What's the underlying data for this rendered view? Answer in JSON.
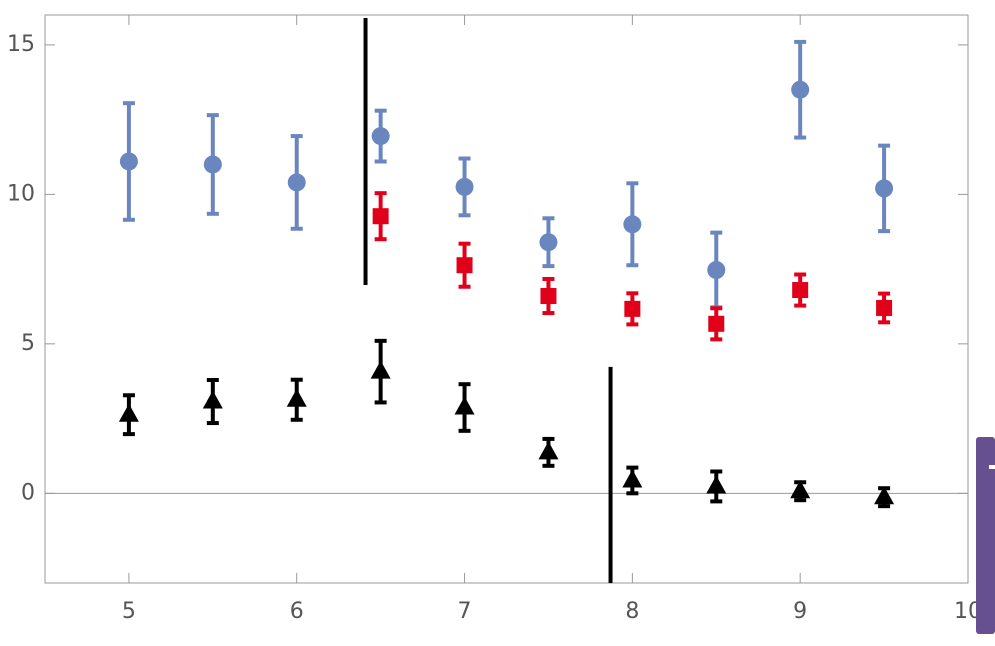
{
  "chart_data": {
    "type": "errorbar",
    "xlim": [
      4.5,
      10
    ],
    "ylim": [
      -3,
      16
    ],
    "xticks": [
      5,
      6,
      7,
      8,
      9,
      10
    ],
    "yticks": [
      0,
      5,
      10,
      15
    ],
    "zero_line": true,
    "series": [
      {
        "color": "#6a86bf",
        "marker": "circle",
        "x": [
          5,
          5.5,
          6,
          6.5,
          7,
          7.5,
          8,
          8.5,
          9,
          9.5
        ],
        "values": [
          11.1,
          11.0,
          10.4,
          11.95,
          10.25,
          8.4,
          9.0,
          7.47,
          13.5,
          10.2
        ],
        "errors": [
          1.95,
          1.65,
          1.55,
          0.85,
          0.95,
          0.8,
          1.37,
          1.25,
          1.6,
          1.43
        ]
      },
      {
        "color": "#e0001a",
        "marker": "square",
        "x": [
          6.5,
          7,
          7.5,
          8,
          8.5,
          9,
          9.5
        ],
        "values": [
          9.27,
          7.63,
          6.6,
          6.17,
          5.67,
          6.8,
          6.2
        ],
        "errors": [
          0.77,
          0.72,
          0.57,
          0.52,
          0.52,
          0.52,
          0.48
        ]
      },
      {
        "color": "#000000",
        "marker": "triangle",
        "x": [
          5,
          5.5,
          6,
          6.5,
          7,
          7.5,
          8,
          8.5,
          9,
          9.5
        ],
        "values": [
          2.63,
          3.07,
          3.13,
          4.07,
          2.87,
          1.37,
          0.43,
          0.23,
          0.07,
          -0.13
        ],
        "errors": [
          0.65,
          0.72,
          0.67,
          1.03,
          0.78,
          0.45,
          0.43,
          0.5,
          0.3,
          0.3
        ]
      }
    ],
    "vertical_lines": [
      {
        "x": 6.41,
        "y": [
          6.97,
          15.9
        ]
      },
      {
        "x": 7.87,
        "y": [
          -3,
          4.23
        ]
      }
    ]
  }
}
